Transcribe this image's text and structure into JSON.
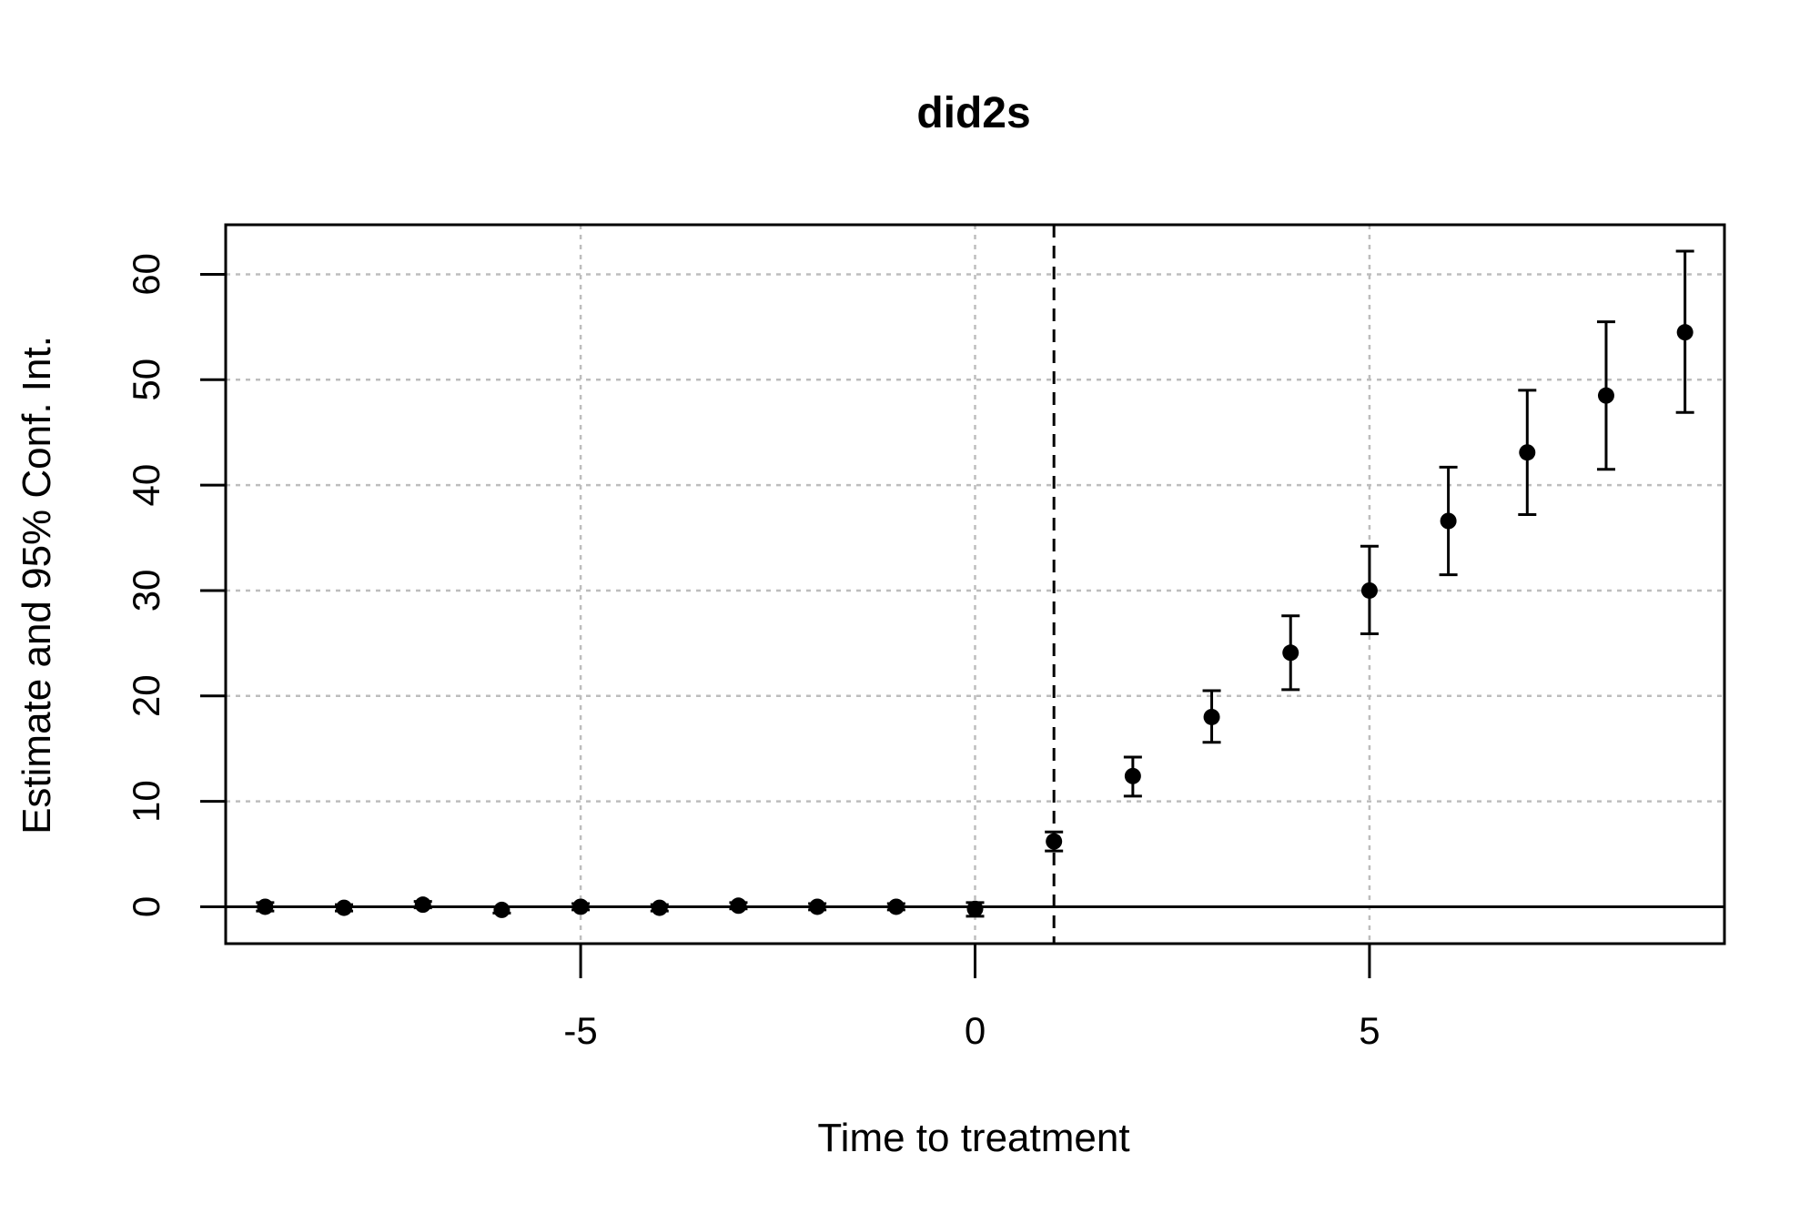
{
  "chart_data": {
    "type": "scatter",
    "title": "did2s",
    "xlabel": "Time to treatment",
    "ylabel": "Estimate and 95% Conf. Int.",
    "xlim": [
      -9.5,
      9.5
    ],
    "ylim": [
      -3.5,
      64.7
    ],
    "xticks": [
      -5,
      0,
      5
    ],
    "xtick_labels": [
      "-5",
      "0",
      "5"
    ],
    "yticks": [
      0,
      10,
      20,
      30,
      40,
      50,
      60
    ],
    "ytick_labels": [
      "0",
      "10",
      "20",
      "30",
      "40",
      "50",
      "60"
    ],
    "grid": true,
    "reference_hline": 0,
    "reference_vline": 1,
    "points": [
      {
        "x": -9,
        "y": 0.0,
        "lo": -0.4,
        "hi": 0.4
      },
      {
        "x": -8,
        "y": -0.1,
        "lo": -0.4,
        "hi": 0.2
      },
      {
        "x": -7,
        "y": 0.2,
        "lo": -0.1,
        "hi": 0.5
      },
      {
        "x": -6,
        "y": -0.3,
        "lo": -0.6,
        "hi": 0.0
      },
      {
        "x": -5,
        "y": 0.0,
        "lo": -0.3,
        "hi": 0.3
      },
      {
        "x": -4,
        "y": -0.1,
        "lo": -0.4,
        "hi": 0.2
      },
      {
        "x": -3,
        "y": 0.1,
        "lo": -0.2,
        "hi": 0.4
      },
      {
        "x": -2,
        "y": 0.0,
        "lo": -0.3,
        "hi": 0.3
      },
      {
        "x": -1,
        "y": 0.0,
        "lo": -0.3,
        "hi": 0.3
      },
      {
        "x": 0,
        "y": -0.2,
        "lo": -0.9,
        "hi": 0.4
      },
      {
        "x": 1,
        "y": 6.2,
        "lo": 5.3,
        "hi": 7.1
      },
      {
        "x": 2,
        "y": 12.4,
        "lo": 10.5,
        "hi": 14.2
      },
      {
        "x": 3,
        "y": 18.0,
        "lo": 15.6,
        "hi": 20.5
      },
      {
        "x": 4,
        "y": 24.1,
        "lo": 20.6,
        "hi": 27.6
      },
      {
        "x": 5,
        "y": 30.0,
        "lo": 25.9,
        "hi": 34.2
      },
      {
        "x": 6,
        "y": 36.6,
        "lo": 31.5,
        "hi": 41.7
      },
      {
        "x": 7,
        "y": 43.1,
        "lo": 37.2,
        "hi": 49.0
      },
      {
        "x": 8,
        "y": 48.5,
        "lo": 41.5,
        "hi": 55.5
      },
      {
        "x": 9,
        "y": 54.5,
        "lo": 46.9,
        "hi": 62.2
      }
    ]
  }
}
